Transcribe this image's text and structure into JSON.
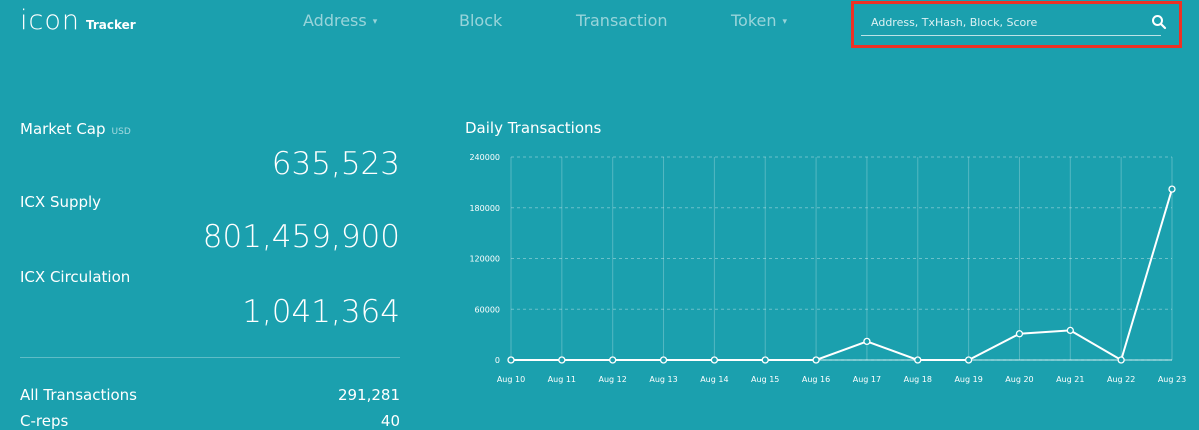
{
  "header": {
    "logo": "icon",
    "logo_sub": "Tracker",
    "nav": [
      {
        "label": "Address",
        "caret": "▾"
      },
      {
        "label": "Block",
        "caret": ""
      },
      {
        "label": "Transaction",
        "caret": ""
      },
      {
        "label": "Token",
        "caret": "▾"
      }
    ],
    "search_placeholder": "Address, TxHash, Block, Score",
    "search_icon": "search-icon",
    "highlight_color": "#ef3124"
  },
  "stats": {
    "market_cap_label": "Market Cap",
    "market_cap_unit": "USD",
    "market_cap_value": "635,523",
    "icx_supply_label": "ICX Supply",
    "icx_supply_value": "801,459,900",
    "icx_circulation_label": "ICX Circulation",
    "icx_circulation_value": "1,041,364",
    "all_transactions_label": "All Transactions",
    "all_transactions_value": "291,281",
    "preps_label": "C-reps",
    "preps_value": "40"
  },
  "colors": {
    "background": "#1ba0ae",
    "text": "#ffffff"
  },
  "chart_data": {
    "type": "line",
    "title": "Daily Transactions",
    "x": [
      "Aug 10",
      "Aug 11",
      "Aug 12",
      "Aug 13",
      "Aug 14",
      "Aug 15",
      "Aug 16",
      "Aug 17",
      "Aug 18",
      "Aug 19",
      "Aug 20",
      "Aug 21",
      "Aug 22",
      "Aug 23"
    ],
    "values": [
      0,
      0,
      0,
      0,
      0,
      0,
      0,
      22000,
      0,
      0,
      31000,
      35000,
      0,
      202000
    ],
    "yticks": [
      "0",
      "60000",
      "120000",
      "180000",
      "240000"
    ],
    "ylim": [
      0,
      240000
    ],
    "grid": true
  }
}
